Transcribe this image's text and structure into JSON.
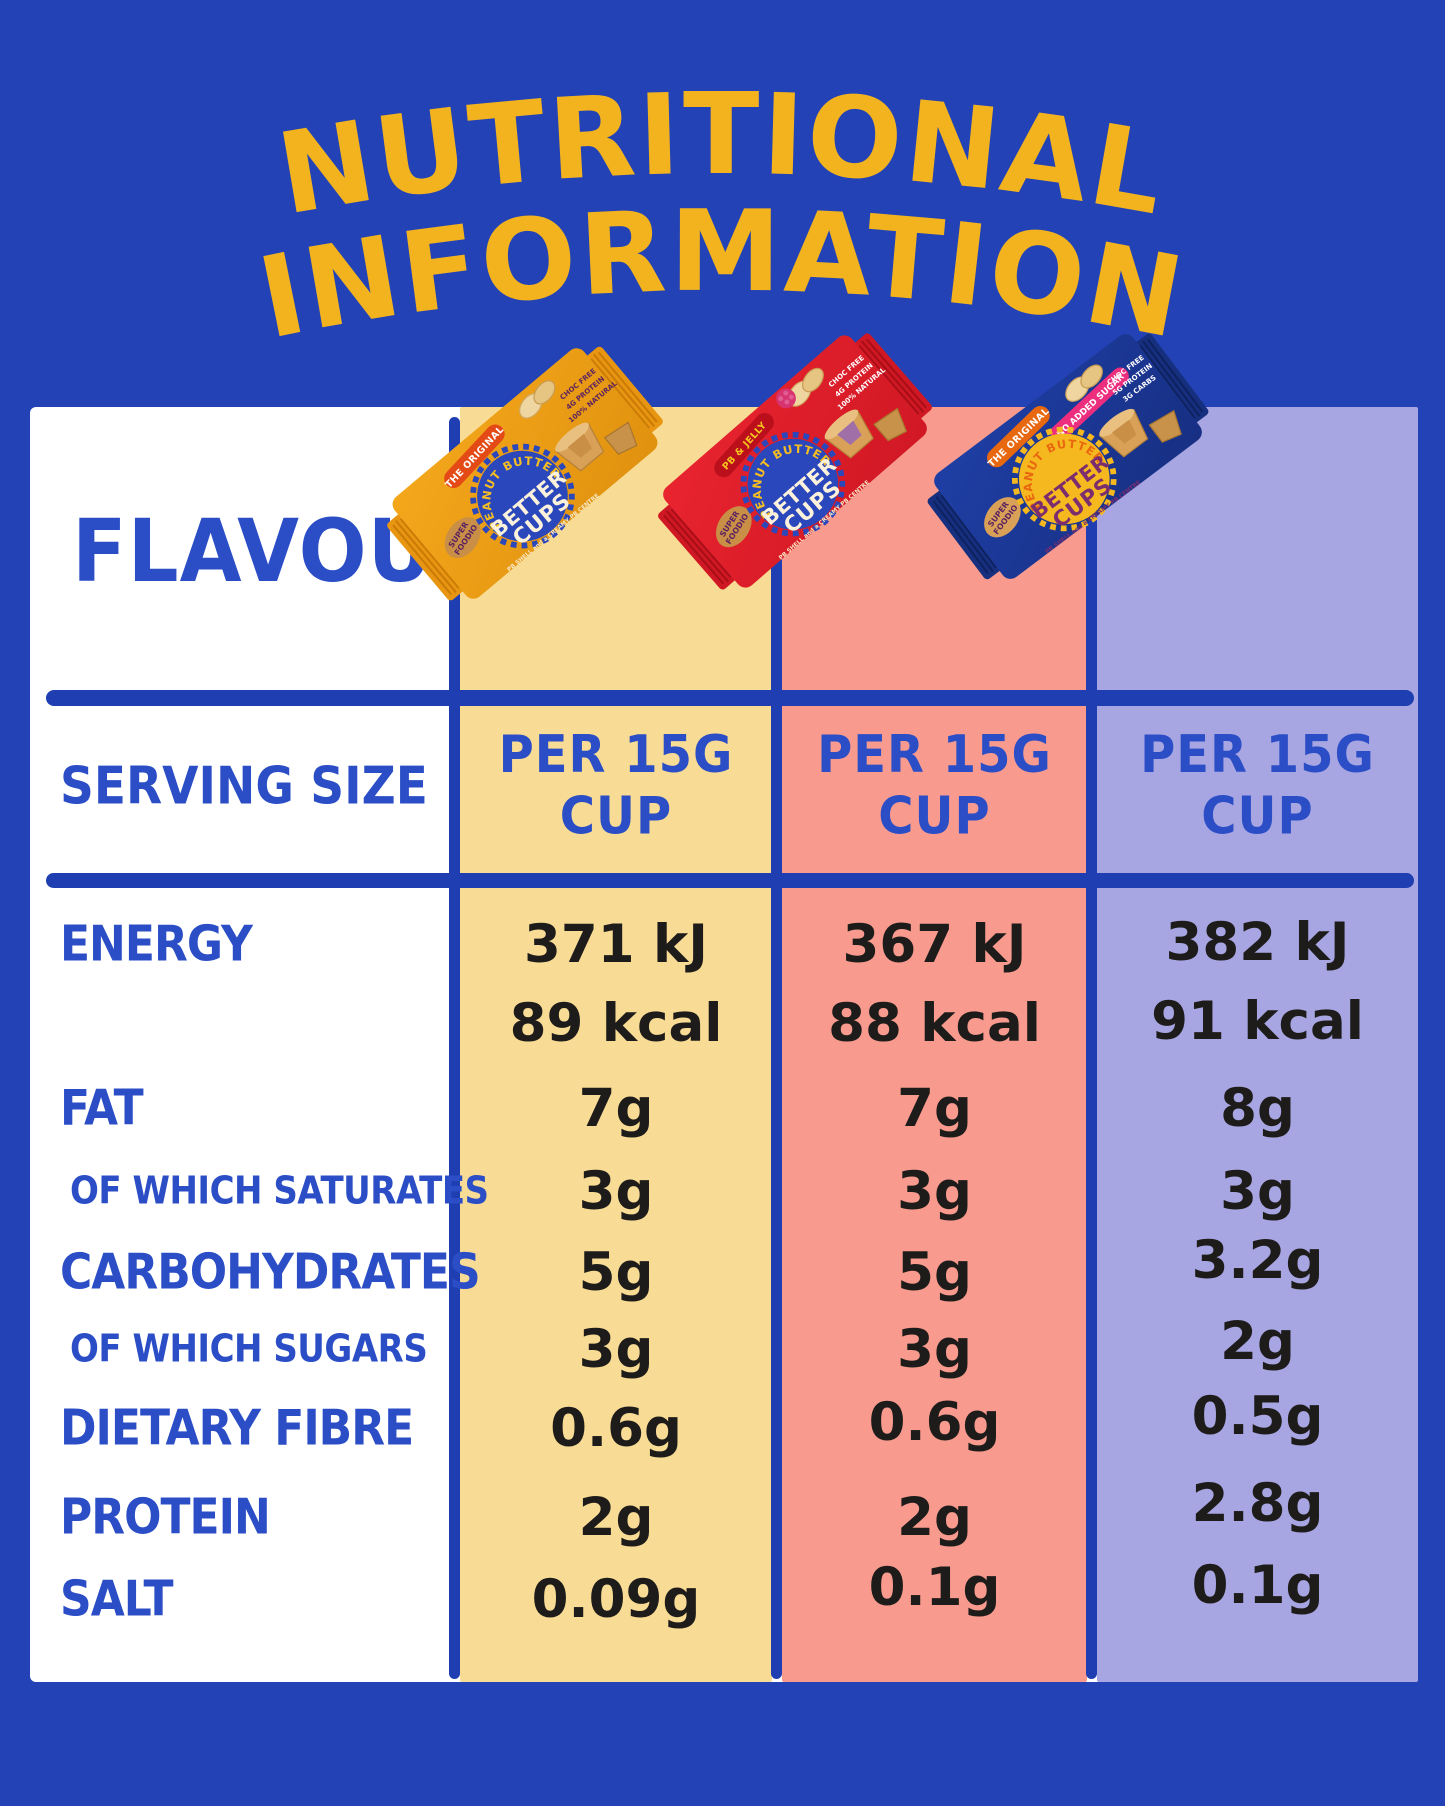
{
  "title": {
    "line1": "NUTRITIONAL",
    "line2": "INFORMATION"
  },
  "colors": {
    "background_blue": "#2342B5",
    "line_blue": "#1E3EB2",
    "label_blue": "#2B4EC6",
    "title_yellow": "#F2B31E",
    "value_ink": "#1E1C1A",
    "column_yellow": "#F8DB94",
    "column_salmon": "#F89B8E",
    "column_lavender": "#A8A6E2"
  },
  "table": {
    "flavour_label": "FLAVOUR",
    "serving_label": "SERVING SIZE",
    "columns": [
      {
        "flavour": "Peanut Butter Better Cups — The Original",
        "serving_line1": "PER 15G",
        "serving_line2": "CUP",
        "bg": "#F8DB94"
      },
      {
        "flavour": "Peanut Butter Better Cups — PB & Jelly",
        "serving_line1": "PER 15G",
        "serving_line2": "CUP",
        "bg": "#F89B8E"
      },
      {
        "flavour": "Peanut Butter Better Cups — No Added Sugar",
        "serving_line1": "PER 15G",
        "serving_line2": "CUP",
        "bg": "#A8A6E2"
      }
    ],
    "rows": [
      {
        "label": "ENERGY",
        "sub": false,
        "values": [
          "371 kJ",
          "367 kJ",
          "382 kJ"
        ]
      },
      {
        "label": "",
        "sub": false,
        "values": [
          "89 kcal",
          "88 kcal",
          "91 kcal"
        ]
      },
      {
        "label": "FAT",
        "sub": false,
        "values": [
          "7g",
          "7g",
          "8g"
        ]
      },
      {
        "label": "OF WHICH SATURATES",
        "sub": true,
        "values": [
          "3g",
          "3g",
          "3g"
        ]
      },
      {
        "label": "CARBOHYDRATES",
        "sub": false,
        "values": [
          "5g",
          "5g",
          "3.2g"
        ]
      },
      {
        "label": "OF WHICH SUGARS",
        "sub": true,
        "values": [
          "3g",
          "3g",
          "2g"
        ]
      },
      {
        "label": "DIETARY FIBRE",
        "sub": false,
        "values": [
          "0.6g",
          "0.6g",
          "0.5g"
        ]
      },
      {
        "label": "PROTEIN",
        "sub": false,
        "values": [
          "2g",
          "2g",
          "2.8g"
        ]
      },
      {
        "label": "SALT",
        "sub": false,
        "values": [
          "0.09g",
          "0.1g",
          "0.1g"
        ]
      }
    ]
  },
  "packs": [
    {
      "name": "the-original",
      "brand": "SUPER FOODIO",
      "arc_text": "PEANUT BUTTER",
      "title_line1": "BETTER",
      "title_line2": "CUPS",
      "subtext": "PB SHELL and a CREAMY PB CENTRE",
      "badge1": {
        "text": "THE ORIGINAL",
        "bg": "#E44A16",
        "fg": "#FFFFFF"
      },
      "badge2": null,
      "side_lines": [
        "CHOC FREE",
        "4G PROTEIN",
        "100% NATURAL"
      ],
      "raspberry": false,
      "body": "#F4A71B",
      "body2": "#E0920F",
      "fin": "#E89612",
      "ridge": "#C97B06",
      "seal": "#2A47BB",
      "arc_color": "#F7BE22",
      "title_color": "#FCF2DC",
      "sub_color": "#F7E8C4",
      "side_color": "#5B2160",
      "brand_bg": "#C98F46",
      "brand_fg": "#5B2160",
      "centre": "#C98F46"
    },
    {
      "name": "pb-and-jelly",
      "brand": "SUPER FOODIO",
      "arc_text": "PEANUT BUTTER",
      "title_line1": "BETTER",
      "title_line2": "CUPS",
      "subtext": "PB SHELL and a CREAMY PB CENTRE",
      "badge1": {
        "text": "PB & JELLY",
        "bg": "#BC0F1C",
        "fg": "#F7C51E"
      },
      "badge2": null,
      "side_lines": [
        "CHOC FREE",
        "4G PROTEIN",
        "100% NATURAL"
      ],
      "raspberry": true,
      "body": "#E8242F",
      "body2": "#D01824",
      "fin": "#D01824",
      "ridge": "#A80E18",
      "seal": "#2A47BB",
      "arc_color": "#F7BE22",
      "title_color": "#FCF2DC",
      "sub_color": "#F7E8C4",
      "side_color": "#FFFFFF",
      "brand_bg": "#C98F46",
      "brand_fg": "#5B2160",
      "centre": "#A06FA8"
    },
    {
      "name": "no-added-sugar",
      "brand": "SUPER FOODIO",
      "arc_text": "PEANUT BUTTER",
      "title_line1": "BETTER",
      "title_line2": "CUPS",
      "subtext": "PB SHELL and a CREAMY PB CENTRE",
      "badge1": {
        "text": "THE ORIGINAL",
        "bg": "#E8680F",
        "fg": "#FFFFFF"
      },
      "badge2": {
        "text": "NO ADDED SUGAR",
        "bg": "#ED2E7E",
        "fg": "#FFFFFF"
      },
      "side_lines": [
        "CHOC FREE",
        "5G PROTEIN",
        "3G CARBS"
      ],
      "raspberry": false,
      "body": "#1F3FA5",
      "body2": "#172F83",
      "fin": "#16307F",
      "ridge": "#0E2260",
      "seal": "#F6B81F",
      "arc_color": "#E8680F",
      "title_color": "#7B2D6E",
      "sub_color": "#7B2D6E",
      "side_color": "#FFFFFF",
      "brand_bg": "#D9A158",
      "brand_fg": "#5B2160",
      "centre": "#C98F46"
    }
  ],
  "chart_data": {
    "type": "table",
    "title": "NUTRITIONAL INFORMATION",
    "columns": [
      "FLAVOUR",
      "The Original",
      "PB & Jelly",
      "No Added Sugar"
    ],
    "serving_size": [
      "PER 15G CUP",
      "PER 15G CUP",
      "PER 15G CUP"
    ],
    "rows": [
      {
        "label": "ENERGY",
        "values": [
          "371 kJ / 89 kcal",
          "367 kJ / 88 kcal",
          "382 kJ / 91 kcal"
        ]
      },
      {
        "label": "FAT",
        "values": [
          "7g",
          "7g",
          "8g"
        ]
      },
      {
        "label": "OF WHICH SATURATES",
        "values": [
          "3g",
          "3g",
          "3g"
        ]
      },
      {
        "label": "CARBOHYDRATES",
        "values": [
          "5g",
          "5g",
          "3.2g"
        ]
      },
      {
        "label": "OF WHICH SUGARS",
        "values": [
          "3g",
          "3g",
          "2g"
        ]
      },
      {
        "label": "DIETARY FIBRE",
        "values": [
          "0.6g",
          "0.6g",
          "0.5g"
        ]
      },
      {
        "label": "PROTEIN",
        "values": [
          "2g",
          "2g",
          "2.8g"
        ]
      },
      {
        "label": "SALT",
        "values": [
          "0.09g",
          "0.1g",
          "0.1g"
        ]
      }
    ],
    "layout": {
      "grid": false,
      "legend": "none"
    }
  }
}
